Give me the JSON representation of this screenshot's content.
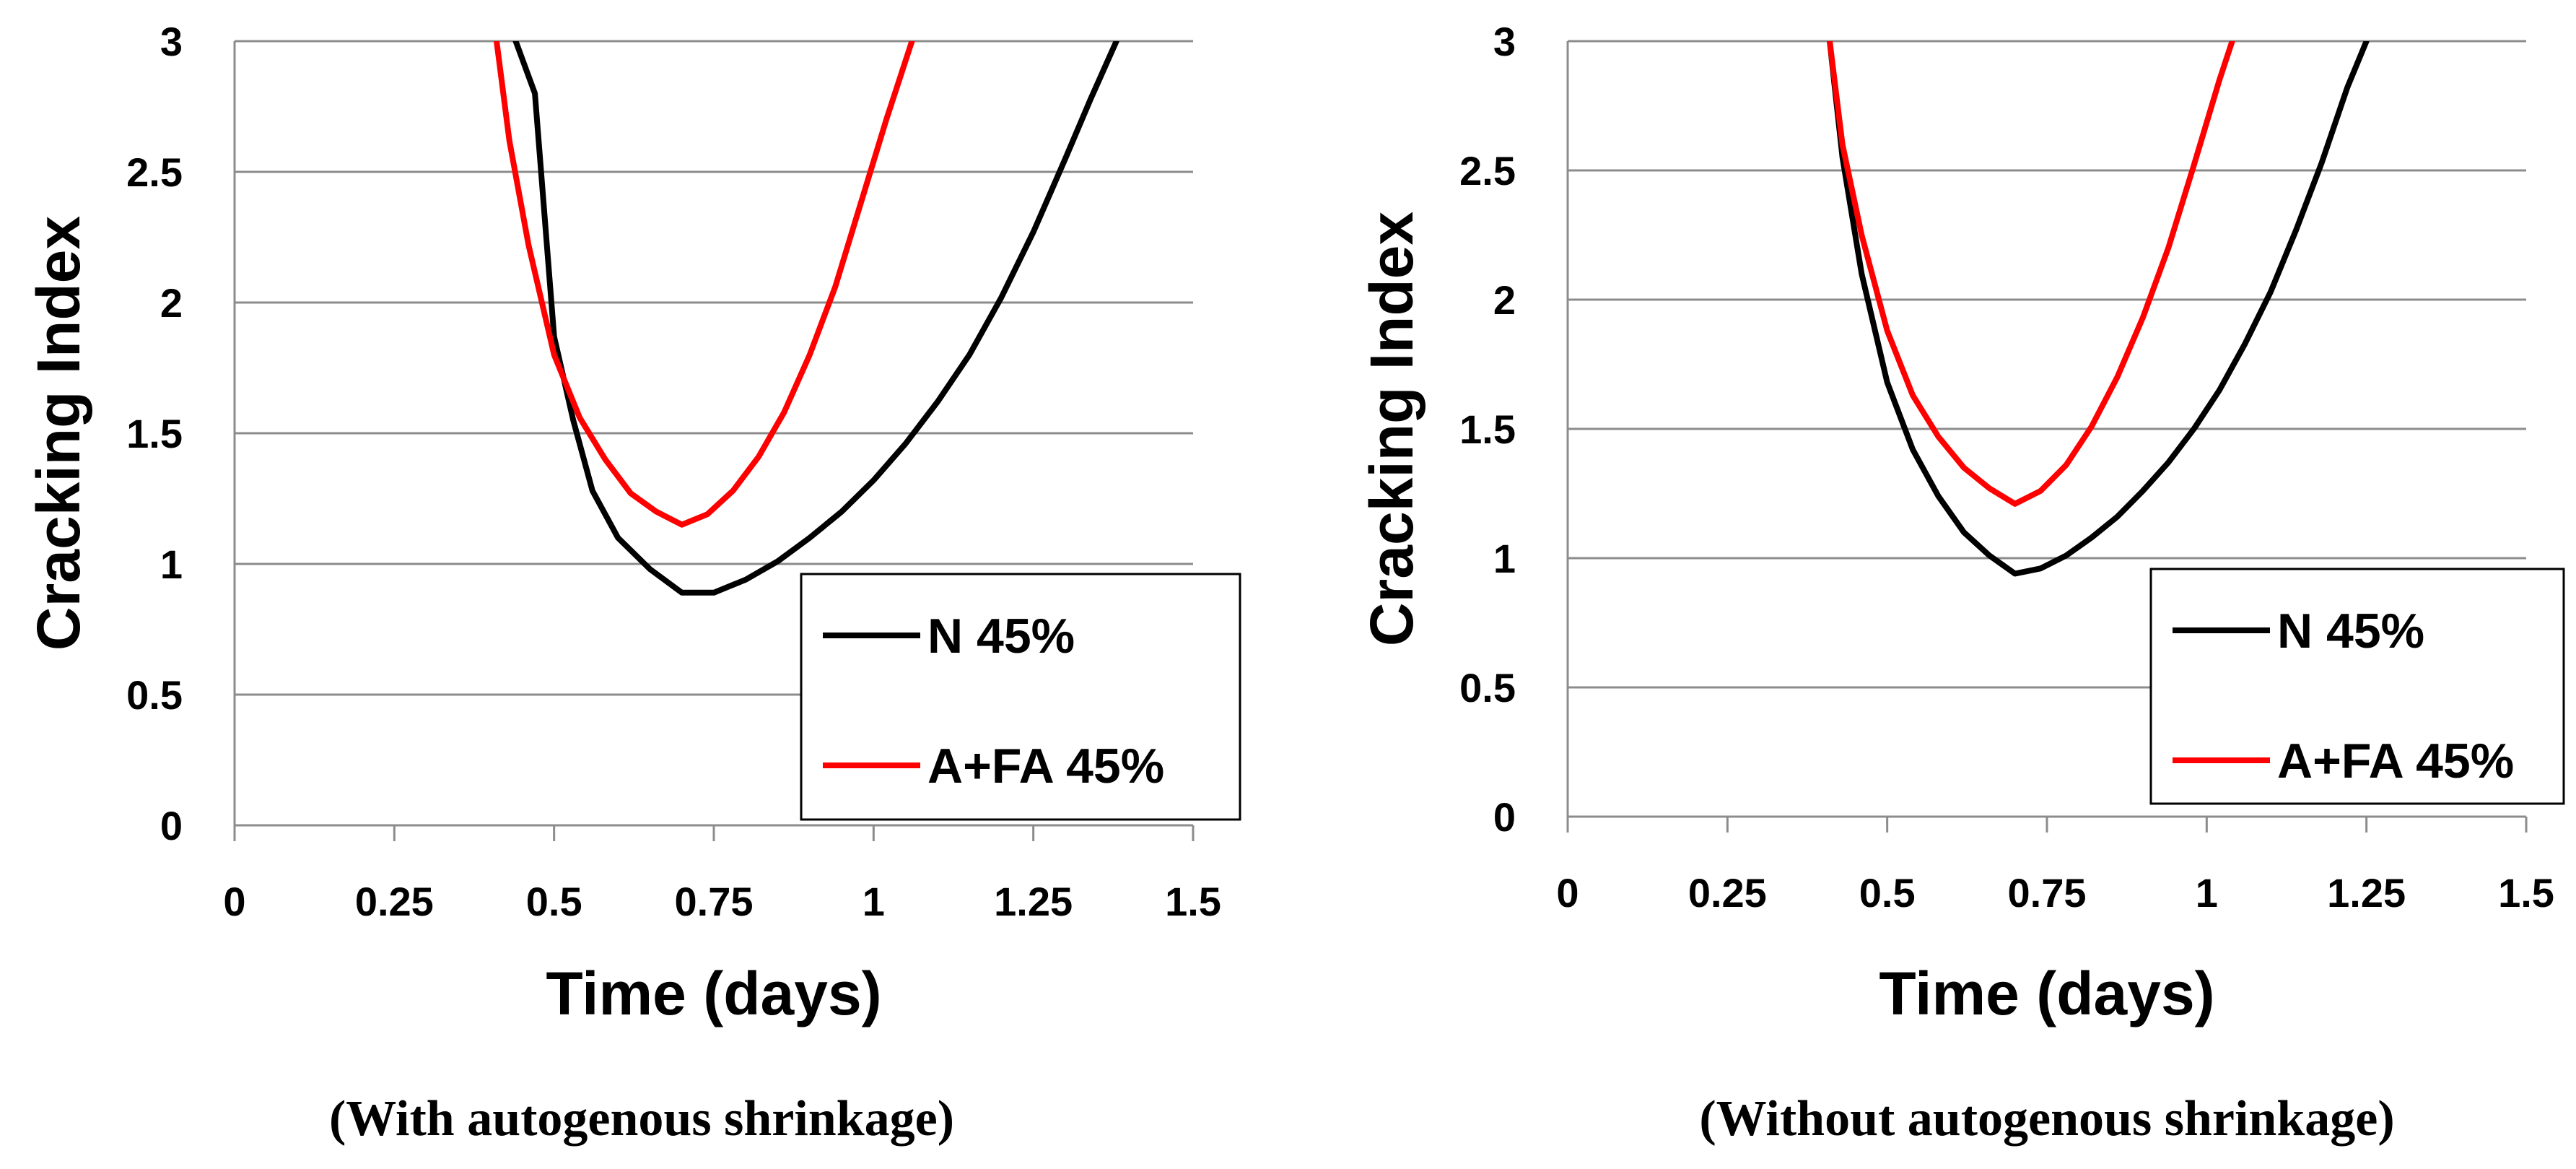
{
  "chart_data": [
    {
      "type": "line",
      "caption": "(With autogenous shrinkage)",
      "xlabel": "Time (days)",
      "ylabel": "Cracking Index",
      "xlim": [
        0,
        1.5
      ],
      "ylim": [
        0,
        3
      ],
      "x_ticks": [
        "0",
        "0.25",
        "0.5",
        "0.75",
        "1",
        "1.25",
        "1.5"
      ],
      "y_ticks": [
        "0",
        "0.5",
        "1",
        "1.5",
        "2",
        "2.5",
        "3"
      ],
      "grid": "horizontal",
      "legend_position": "lower-right",
      "series": [
        {
          "name": "N 45%",
          "color": "#000000",
          "x": [
            0.44,
            0.47,
            0.5,
            0.53,
            0.56,
            0.6,
            0.65,
            0.7,
            0.75,
            0.8,
            0.85,
            0.9,
            0.95,
            1.0,
            1.05,
            1.1,
            1.15,
            1.2,
            1.25,
            1.3,
            1.34,
            1.38
          ],
          "y": [
            3.0,
            2.8,
            1.87,
            1.55,
            1.28,
            1.1,
            0.98,
            0.89,
            0.89,
            0.94,
            1.01,
            1.1,
            1.2,
            1.32,
            1.46,
            1.62,
            1.8,
            2.02,
            2.27,
            2.55,
            2.78,
            3.0
          ]
        },
        {
          "name": "A+FA 45%",
          "color": "#ff0000",
          "x": [
            0.41,
            0.43,
            0.46,
            0.5,
            0.54,
            0.58,
            0.62,
            0.66,
            0.7,
            0.74,
            0.78,
            0.82,
            0.86,
            0.9,
            0.94,
            0.98,
            1.02,
            1.06
          ],
          "y": [
            3.0,
            2.62,
            2.22,
            1.8,
            1.56,
            1.4,
            1.27,
            1.2,
            1.15,
            1.19,
            1.28,
            1.41,
            1.58,
            1.8,
            2.06,
            2.38,
            2.7,
            3.0
          ]
        }
      ]
    },
    {
      "type": "line",
      "caption": "(Without autogenous shrinkage)",
      "xlabel": "Time (days)",
      "ylabel": "Cracking Index",
      "xlim": [
        0,
        1.5
      ],
      "ylim": [
        0,
        3
      ],
      "x_ticks": [
        "0",
        "0.25",
        "0.5",
        "0.75",
        "1",
        "1.25",
        "1.5"
      ],
      "y_ticks": [
        "0",
        "0.5",
        "1",
        "1.5",
        "2",
        "2.5",
        "3"
      ],
      "grid": "horizontal",
      "legend_position": "lower-right",
      "series": [
        {
          "name": "N 45%",
          "color": "#000000",
          "x": [
            0.41,
            0.43,
            0.46,
            0.5,
            0.54,
            0.58,
            0.62,
            0.66,
            0.7,
            0.74,
            0.78,
            0.82,
            0.86,
            0.9,
            0.94,
            0.98,
            1.02,
            1.06,
            1.1,
            1.14,
            1.18,
            1.22,
            1.25
          ],
          "y": [
            3.0,
            2.55,
            2.1,
            1.68,
            1.42,
            1.24,
            1.1,
            1.01,
            0.94,
            0.96,
            1.01,
            1.08,
            1.16,
            1.26,
            1.37,
            1.5,
            1.65,
            1.83,
            2.03,
            2.27,
            2.53,
            2.82,
            3.0
          ]
        },
        {
          "name": "A+FA 45%",
          "color": "#ff0000",
          "x": [
            0.41,
            0.43,
            0.46,
            0.5,
            0.54,
            0.58,
            0.62,
            0.66,
            0.7,
            0.74,
            0.78,
            0.82,
            0.86,
            0.9,
            0.94,
            0.98,
            1.02,
            1.04
          ],
          "y": [
            3.0,
            2.6,
            2.25,
            1.88,
            1.63,
            1.47,
            1.35,
            1.27,
            1.21,
            1.26,
            1.36,
            1.51,
            1.7,
            1.93,
            2.2,
            2.52,
            2.85,
            3.0
          ]
        }
      ]
    }
  ]
}
